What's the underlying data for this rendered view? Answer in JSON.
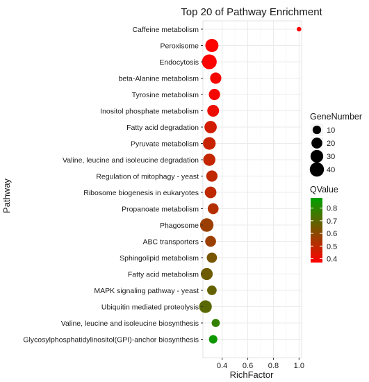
{
  "chart_data": {
    "type": "scatter",
    "title": "Top 20 of Pathway Enrichment",
    "xlabel": "RichFactor",
    "ylabel": "Pathway",
    "xlim": [
      0.25,
      1.02
    ],
    "xticks": [
      0.4,
      0.6,
      0.8,
      1.0
    ],
    "xtick_labels": [
      "0.4",
      "0.6",
      "0.8",
      "1.0"
    ],
    "grid": true,
    "categories": [
      "Caffeine metabolism",
      "Peroxisome",
      "Endocytosis",
      "beta-Alanine metabolism",
      "Tyrosine metabolism",
      "Inositol phosphate metabolism",
      "Fatty acid degradation",
      "Pyruvate metabolism",
      "Valine, leucine and isoleucine degradation",
      "Regulation of mitophagy - yeast",
      "Ribosome biogenesis in eukaryotes",
      "Propanoate metabolism",
      "Phagosome",
      "ABC transporters",
      "Sphingolipid metabolism",
      "Fatty acid metabolism",
      "MAPK signaling pathway - yeast",
      "Ubiquitin mediated proteolysis",
      "Valine, leucine and isoleucine biosynthesis",
      "Glycosylphosphatidylinositol(GPI)-anchor biosynthesis"
    ],
    "points": [
      {
        "pathway": "Caffeine metabolism",
        "rich_factor": 1.0,
        "gene_number": 1,
        "qvalue": 0.38
      },
      {
        "pathway": "Peroxisome",
        "rich_factor": 0.32,
        "gene_number": 33,
        "qvalue": 0.38
      },
      {
        "pathway": "Endocytosis",
        "rich_factor": 0.3,
        "gene_number": 44,
        "qvalue": 0.38
      },
      {
        "pathway": "beta-Alanine metabolism",
        "rich_factor": 0.35,
        "gene_number": 22,
        "qvalue": 0.39
      },
      {
        "pathway": "Tyrosine metabolism",
        "rich_factor": 0.34,
        "gene_number": 22,
        "qvalue": 0.39
      },
      {
        "pathway": "Inositol phosphate metabolism",
        "rich_factor": 0.33,
        "gene_number": 25,
        "qvalue": 0.41
      },
      {
        "pathway": "Fatty acid degradation",
        "rich_factor": 0.31,
        "gene_number": 28,
        "qvalue": 0.46
      },
      {
        "pathway": "Pyruvate metabolism",
        "rich_factor": 0.3,
        "gene_number": 30,
        "qvalue": 0.48
      },
      {
        "pathway": "Valine, leucine and isoleucine degradation",
        "rich_factor": 0.3,
        "gene_number": 27,
        "qvalue": 0.49
      },
      {
        "pathway": "Regulation of mitophagy - yeast",
        "rich_factor": 0.32,
        "gene_number": 22,
        "qvalue": 0.5
      },
      {
        "pathway": "Ribosome biogenesis in eukaryotes",
        "rich_factor": 0.31,
        "gene_number": 24,
        "qvalue": 0.5
      },
      {
        "pathway": "Propanoate metabolism",
        "rich_factor": 0.33,
        "gene_number": 20,
        "qvalue": 0.52
      },
      {
        "pathway": "Phagosome",
        "rich_factor": 0.28,
        "gene_number": 35,
        "qvalue": 0.57
      },
      {
        "pathway": "ABC transporters",
        "rich_factor": 0.31,
        "gene_number": 20,
        "qvalue": 0.57
      },
      {
        "pathway": "Sphingolipid metabolism",
        "rich_factor": 0.32,
        "gene_number": 17,
        "qvalue": 0.64
      },
      {
        "pathway": "Fatty acid metabolism",
        "rich_factor": 0.28,
        "gene_number": 26,
        "qvalue": 0.66
      },
      {
        "pathway": "MAPK signaling pathway - yeast",
        "rich_factor": 0.32,
        "gene_number": 14,
        "qvalue": 0.68
      },
      {
        "pathway": "Ubiquitin mediated proteolysis",
        "rich_factor": 0.27,
        "gene_number": 30,
        "qvalue": 0.7
      },
      {
        "pathway": "Valine, leucine and isoleucine biosynthesis",
        "rich_factor": 0.35,
        "gene_number": 9,
        "qvalue": 0.78
      },
      {
        "pathway": "Glycosylphosphatidylinositol(GPI)-anchor biosynthesis",
        "rich_factor": 0.33,
        "gene_number": 10,
        "qvalue": 0.85
      }
    ],
    "size_legend": {
      "title": "GeneNumber",
      "values": [
        10,
        20,
        30,
        40
      ],
      "labels": [
        "10",
        "20",
        "30",
        "40"
      ]
    },
    "color_legend": {
      "title": "QValue",
      "ticks": [
        0.4,
        0.5,
        0.6,
        0.7,
        0.8
      ],
      "tick_labels": [
        "0.4",
        "0.5",
        "0.6",
        "0.7",
        "0.8"
      ],
      "range": [
        0.37,
        0.88
      ],
      "low_color": "#ff0000",
      "high_color": "#00a000"
    },
    "legend_placement": "right",
    "panel_background": "#ffffff",
    "grid_color": "#ebebeb"
  }
}
